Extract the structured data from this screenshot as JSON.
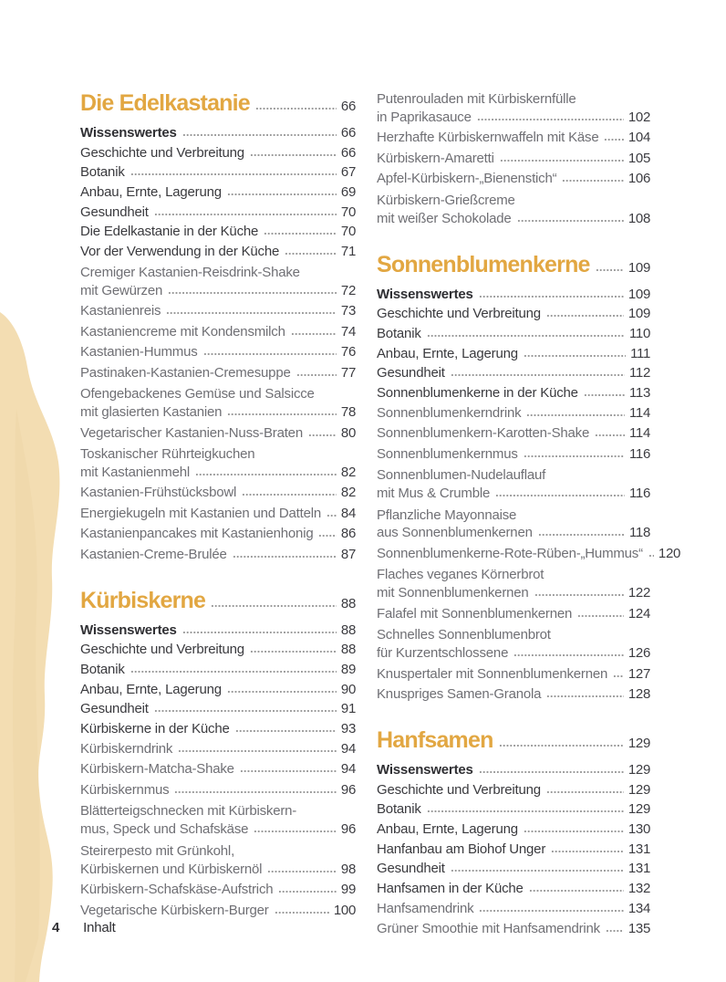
{
  "colors": {
    "heading": "#e2a742",
    "bold_text": "#2f2f33",
    "section_text": "#3a3a3e",
    "recipe_text": "#6f6f74",
    "number_text": "#3c3c41",
    "dots": "#9a9a9a",
    "blob": "#f3ddb2",
    "blob_shade": "#ecd2a0"
  },
  "footer": {
    "page_number": "4",
    "label": "Inhalt"
  },
  "columns": [
    {
      "entries": [
        {
          "style": "chapter",
          "lines": [
            "Die Edelkastanie"
          ],
          "page": "66"
        },
        {
          "style": "bold",
          "lines": [
            "Wissenswertes"
          ],
          "page": "66"
        },
        {
          "style": "section",
          "lines": [
            "Geschichte und Verbreitung"
          ],
          "page": "66"
        },
        {
          "style": "section",
          "lines": [
            "Botanik"
          ],
          "page": "67"
        },
        {
          "style": "section",
          "lines": [
            "Anbau, Ernte, Lagerung"
          ],
          "page": "69"
        },
        {
          "style": "section",
          "lines": [
            "Gesundheit"
          ],
          "page": "70"
        },
        {
          "style": "section",
          "lines": [
            "Die Edelkastanie in der Küche"
          ],
          "page": "70"
        },
        {
          "style": "section",
          "lines": [
            "Vor der Verwendung in der Küche"
          ],
          "page": "71"
        },
        {
          "style": "recipe",
          "lines": [
            "Cremiger Kastanien-Reisdrink-Shake",
            "mit Gewürzen"
          ],
          "page": "72"
        },
        {
          "style": "recipe",
          "lines": [
            "Kastanienreis"
          ],
          "page": "73"
        },
        {
          "style": "recipe",
          "lines": [
            "Kastaniencreme mit Kondensmilch"
          ],
          "page": "74"
        },
        {
          "style": "recipe",
          "lines": [
            "Kastanien-Hummus"
          ],
          "page": "76"
        },
        {
          "style": "recipe",
          "lines": [
            "Pastinaken-Kastanien-Cremesuppe"
          ],
          "page": "77"
        },
        {
          "style": "recipe",
          "lines": [
            "Ofengebackenes Gemüse und Salsicce",
            "mit glasierten Kastanien"
          ],
          "page": "78"
        },
        {
          "style": "recipe",
          "lines": [
            "Vegetarischer Kastanien-Nuss-Braten"
          ],
          "page": "80"
        },
        {
          "style": "recipe",
          "lines": [
            "Toskanischer Rührteigkuchen",
            "mit Kastanienmehl"
          ],
          "page": "82"
        },
        {
          "style": "recipe",
          "lines": [
            "Kastanien-Frühstücksbowl"
          ],
          "page": "82"
        },
        {
          "style": "recipe",
          "lines": [
            "Energiekugeln mit Kastanien und Datteln"
          ],
          "page": "84"
        },
        {
          "style": "recipe",
          "lines": [
            "Kastanienpancakes mit Kastanienhonig"
          ],
          "page": "86"
        },
        {
          "style": "recipe",
          "lines": [
            "Kastanien-Creme-Brulée"
          ],
          "page": "87"
        },
        {
          "style": "chapter",
          "lines": [
            "Kürbiskerne"
          ],
          "page": "88"
        },
        {
          "style": "bold",
          "lines": [
            "Wissenswertes"
          ],
          "page": "88"
        },
        {
          "style": "section",
          "lines": [
            "Geschichte und Verbreitung"
          ],
          "page": "88"
        },
        {
          "style": "section",
          "lines": [
            "Botanik"
          ],
          "page": "89"
        },
        {
          "style": "section",
          "lines": [
            "Anbau, Ernte, Lagerung"
          ],
          "page": "90"
        },
        {
          "style": "section",
          "lines": [
            "Gesundheit"
          ],
          "page": "91"
        },
        {
          "style": "section",
          "lines": [
            "Kürbiskerne in der Küche"
          ],
          "page": "93"
        },
        {
          "style": "recipe",
          "lines": [
            "Kürbiskerndrink"
          ],
          "page": "94"
        },
        {
          "style": "recipe",
          "lines": [
            "Kürbiskern-Matcha-Shake"
          ],
          "page": "94"
        },
        {
          "style": "recipe",
          "lines": [
            "Kürbiskernmus"
          ],
          "page": "96"
        },
        {
          "style": "recipe",
          "lines": [
            "Blätterteigschnecken mit Kürbiskern-",
            "mus, Speck und Schafskäse"
          ],
          "page": "96"
        },
        {
          "style": "recipe",
          "lines": [
            "Steirerpesto mit Grünkohl,",
            "Kürbiskernen und Kürbiskernöl"
          ],
          "page": "98"
        },
        {
          "style": "recipe",
          "lines": [
            "Kürbiskern-Schafskäse-Aufstrich"
          ],
          "page": "99"
        },
        {
          "style": "recipe",
          "lines": [
            "Vegetarische Kürbiskern-Burger"
          ],
          "page": "100"
        }
      ]
    },
    {
      "entries": [
        {
          "style": "recipe",
          "lines": [
            "Putenrouladen mit Kürbiskernfülle",
            "in Paprikasauce"
          ],
          "page": "102"
        },
        {
          "style": "recipe",
          "lines": [
            "Herzhafte Kürbiskernwaffeln mit Käse"
          ],
          "page": "104"
        },
        {
          "style": "recipe",
          "lines": [
            "Kürbiskern-Amaretti"
          ],
          "page": "105"
        },
        {
          "style": "recipe",
          "lines": [
            "Apfel-Kürbiskern-„Bienenstich“"
          ],
          "page": "106"
        },
        {
          "style": "recipe",
          "lines": [
            "Kürbiskern-Grießcreme",
            "mit weißer Schokolade"
          ],
          "page": "108"
        },
        {
          "style": "chapter",
          "lines": [
            "Sonnenblumenkerne"
          ],
          "page": "109"
        },
        {
          "style": "bold",
          "lines": [
            "Wissenswertes"
          ],
          "page": "109"
        },
        {
          "style": "section",
          "lines": [
            "Geschichte und Verbreitung"
          ],
          "page": "109"
        },
        {
          "style": "section",
          "lines": [
            "Botanik"
          ],
          "page": "110"
        },
        {
          "style": "section",
          "lines": [
            "Anbau, Ernte, Lagerung"
          ],
          "page": "111"
        },
        {
          "style": "section",
          "lines": [
            "Gesundheit"
          ],
          "page": "112"
        },
        {
          "style": "section",
          "lines": [
            "Sonnenblumenkerne in der Küche"
          ],
          "page": "113"
        },
        {
          "style": "recipe",
          "lines": [
            "Sonnenblumenkerndrink"
          ],
          "page": "114"
        },
        {
          "style": "recipe",
          "lines": [
            "Sonnenblumenkern-Karotten-Shake"
          ],
          "page": "114"
        },
        {
          "style": "recipe",
          "lines": [
            "Sonnenblumenkernmus"
          ],
          "page": "116"
        },
        {
          "style": "recipe",
          "lines": [
            "Sonnenblumen-Nudelauflauf",
            "mit Mus & Crumble"
          ],
          "page": "116"
        },
        {
          "style": "recipe",
          "lines": [
            "Pflanzliche Mayonnaise",
            "aus Sonnenblumenkernen"
          ],
          "page": "118"
        },
        {
          "style": "recipe",
          "lines": [
            "Sonnenblumenkerne-Rote-Rüben-„Hummus“"
          ],
          "page": "120"
        },
        {
          "style": "recipe",
          "lines": [
            "Flaches veganes Körnerbrot",
            "mit Sonnenblumenkernen"
          ],
          "page": "122"
        },
        {
          "style": "recipe",
          "lines": [
            "Falafel mit Sonnenblumenkernen"
          ],
          "page": "124"
        },
        {
          "style": "recipe",
          "lines": [
            "Schnelles Sonnenblumenbrot",
            "für Kurzentschlossene"
          ],
          "page": "126"
        },
        {
          "style": "recipe",
          "lines": [
            "Knuspertaler mit Sonnenblumenkernen"
          ],
          "page": "127"
        },
        {
          "style": "recipe",
          "lines": [
            "Knuspriges Samen-Granola"
          ],
          "page": "128"
        },
        {
          "style": "chapter",
          "lines": [
            "Hanfsamen"
          ],
          "page": "129"
        },
        {
          "style": "bold",
          "lines": [
            "Wissenswertes"
          ],
          "page": "129"
        },
        {
          "style": "section",
          "lines": [
            "Geschichte und Verbreitung"
          ],
          "page": "129"
        },
        {
          "style": "section",
          "lines": [
            "Botanik"
          ],
          "page": "129"
        },
        {
          "style": "section",
          "lines": [
            "Anbau, Ernte, Lagerung"
          ],
          "page": "130"
        },
        {
          "style": "section",
          "lines": [
            "Hanfanbau am Biohof Unger"
          ],
          "page": "131"
        },
        {
          "style": "section",
          "lines": [
            "Gesundheit"
          ],
          "page": "131"
        },
        {
          "style": "section",
          "lines": [
            "Hanfsamen in der Küche"
          ],
          "page": "132"
        },
        {
          "style": "recipe",
          "lines": [
            "Hanfsamendrink"
          ],
          "page": "134"
        },
        {
          "style": "recipe",
          "lines": [
            "Grüner Smoothie mit Hanfsamendrink"
          ],
          "page": "135"
        }
      ]
    }
  ]
}
